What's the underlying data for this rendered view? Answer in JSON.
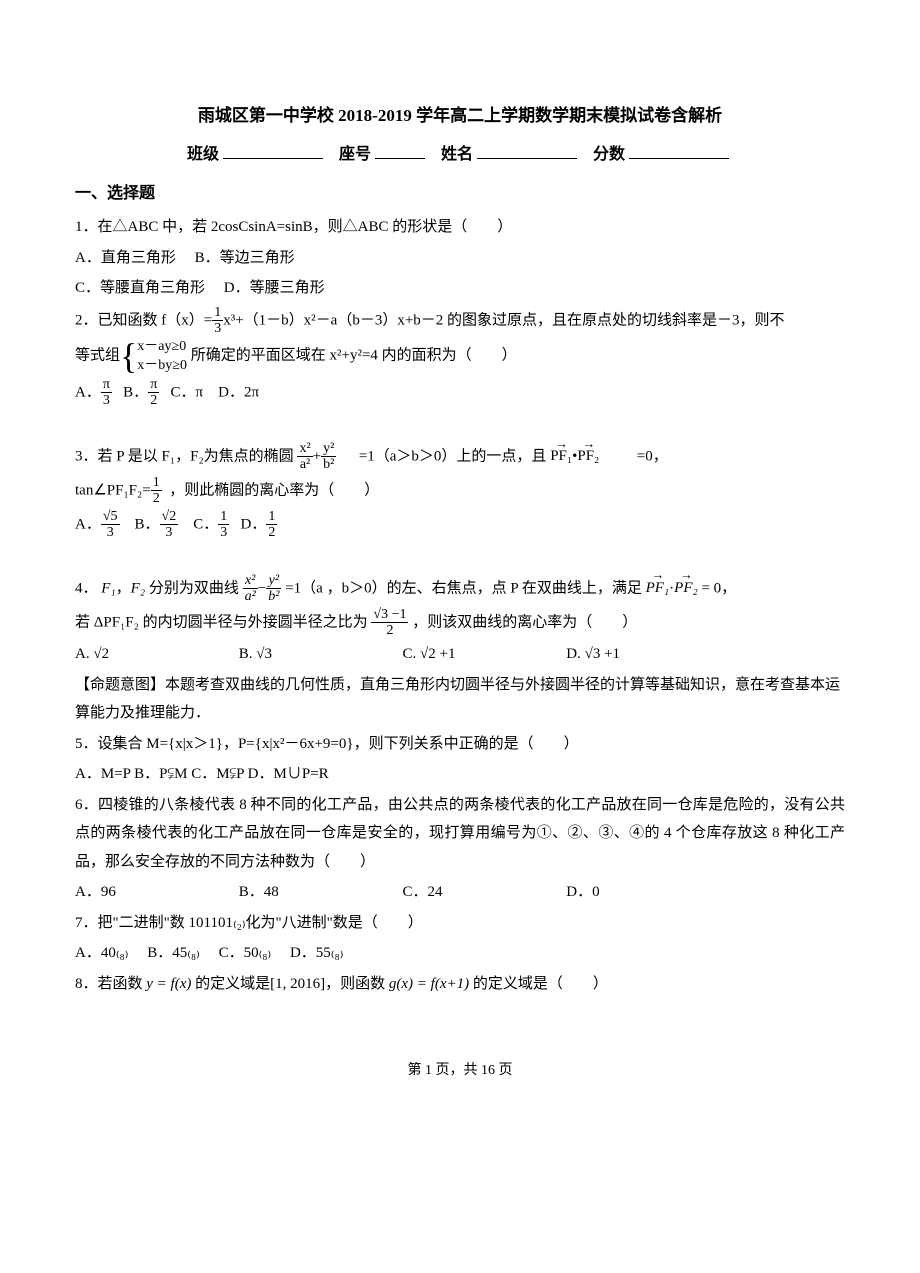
{
  "title": "雨城区第一中学校 2018-2019 学年高二上学期数学期末模拟试卷含解析",
  "header": {
    "class_label": "班级",
    "seat_label": "座号",
    "name_label": "姓名",
    "score_label": "分数"
  },
  "section1": "一、选择题",
  "q1": {
    "stem": "1．在△ABC 中，若 2cosCsinA=sinB，则△ABC 的形状是（　　）",
    "optA": "A．直角三角形",
    "optB": "B．等边三角形",
    "optC": "C．等腰直角三角形",
    "optD": "D．等腰三角形"
  },
  "q2": {
    "stem_a": "2．已知函数 f（x）=",
    "frac1_num": "1",
    "frac1_den": "3",
    "stem_b": "x³+（1－b）x²－a（b－3）x+b－2 的图象过原点，且在原点处的切线斜率是－3，则不",
    "stem_c": "等式组",
    "cond1": "x－ay≥0",
    "cond2": "x－by≥0",
    "stem_d": "所确定的平面区域在 x²+y²=4 内的面积为（　　）",
    "optA": "A．",
    "optA_num": "π",
    "optA_den": "3",
    "optB": "B．",
    "optB_num": "π",
    "optB_den": "2",
    "optC": "C．π",
    "optD": "D．2π"
  },
  "q3": {
    "stem_a": "3．若 P 是以 F₁，F₂为焦点的椭圆",
    "frac1a_num": "x²",
    "frac1a_den": "a²",
    "plus": "+",
    "frac1b_num": "y²",
    "frac1b_den": "b²",
    "stem_b": "=1（a＞b＞0）上的一点，且",
    "vec1": "PF₁",
    "dot": "•",
    "vec2": "PF₂",
    "stem_c": "=0，",
    "stem_d": "tan∠PF₁F₂=",
    "frac2_num": "1",
    "frac2_den": "2",
    "stem_e": "，则此椭圆的离心率为（　　）",
    "optA": "A．",
    "optA_num": "√5",
    "optA_den": "3",
    "optB": "B．",
    "optB_num": "√2",
    "optB_den": "3",
    "optC": "C．",
    "optC_num": "1",
    "optC_den": "3",
    "optD": "D．",
    "optD_num": "1",
    "optD_den": "2"
  },
  "q4": {
    "stem_a": "4．",
    "F1": "F₁",
    "comma": "，",
    "F2": "F₂",
    "stem_b": "分别为双曲线",
    "frac1a_num": "x²",
    "frac1a_den": "a²",
    "minus": "−",
    "frac1b_num": "y²",
    "frac1b_den": "b²",
    "stem_c": "=1（a ，b＞0）的左、右焦点，点 P 在双曲线上，满足",
    "vec1": "PF₁",
    "dot": "·",
    "vec2": "PF₂",
    "stem_d": "= 0，",
    "stem_e": "若 ΔPF₁F₂ 的内切圆半径与外接圆半径之比为",
    "frac2_num": "√3 −1",
    "frac2_den": "2",
    "stem_f": "，则该双曲线的离心率为（　　）",
    "optA": "A. √2",
    "optB": "B. √3",
    "optC": "C. √2 +1",
    "optD": "D. √3 +1",
    "note": "【命题意图】本题考查双曲线的几何性质，直角三角形内切圆半径与外接圆半径的计算等基础知识，意在考查基本运算能力及推理能力．"
  },
  "q5": {
    "stem": "5．设集合 M={x|x＞1}，P={x|x²－6x+9=0}，则下列关系中正确的是（　　）",
    "opts": "A．M=P B．P⫋M C．M⫋P D．M∪P=R"
  },
  "q6": {
    "stem": "6．四棱锥的八条棱代表 8 种不同的化工产品，由公共点的两条棱代表的化工产品放在同一仓库是危险的，没有公共点的两条棱代表的化工产品放在同一仓库是安全的，现打算用编号为①、②、③、④的 4 个仓库存放这 8 种化工产品，那么安全存放的不同方法种数为（　　）",
    "optA": "A．96",
    "optB": "B．48",
    "optC": "C．24",
    "optD": "D．0"
  },
  "q7": {
    "stem": "7．把\"二进制\"数 101101₍₂₎化为\"八进制\"数是（　　）",
    "optA": "A．40₍₈₎",
    "optB": "B．45₍₈₎",
    "optC": "C．50₍₈₎",
    "optD": "D．55₍₈₎"
  },
  "q8": {
    "stem_a": "8．若函数 ",
    "y_eq": "y = f(x)",
    "stem_b": " 的定义域是",
    "domain": "[1, 2016]",
    "stem_c": "，则函数 ",
    "g_eq": "g(x) = f(x+1)",
    "stem_d": " 的定义域是（　　）"
  },
  "footer": {
    "prefix": "第 ",
    "page": "1",
    "mid": " 页，共 ",
    "total": "16",
    "suffix": " 页"
  }
}
